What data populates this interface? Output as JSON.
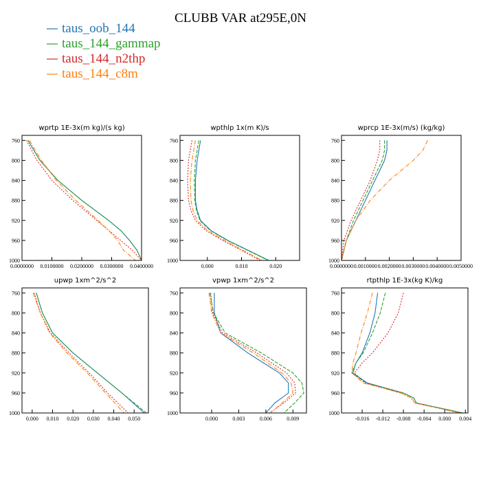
{
  "figure_title": "CLUBB VAR at295E,0N",
  "legend": [
    {
      "label": "taus_oob_144",
      "color": "#1f77b4"
    },
    {
      "label": "taus_144_gammap",
      "color": "#2ca02c"
    },
    {
      "label": "taus_144_n2thp",
      "color": "#d62728"
    },
    {
      "label": "taus_144_c8m",
      "color": "#ff7f0e"
    }
  ],
  "chart_data": [
    {
      "type": "line",
      "title": "wprtp 1E-3x(m kg)/(s kg)",
      "xlim": [
        0,
        0.04
      ],
      "ylim": [
        1000,
        750
      ],
      "xticks": [
        0,
        0.01,
        0.02,
        0.03,
        0.04
      ],
      "xtick_labels": [
        "0.0000000",
        "0.0100000",
        "0.0200000",
        "0.0300000",
        "0.0400000"
      ],
      "yticks": [
        760,
        800,
        840,
        880,
        920,
        960,
        1000
      ],
      "ytick_labels": [
        "760",
        "800",
        "840",
        "880",
        "920",
        "960",
        "1000"
      ],
      "y": [
        760,
        800,
        840,
        880,
        920,
        940,
        960,
        980,
        1000
      ],
      "series": [
        {
          "name": "taus_oob_144",
          "x": [
            0.002,
            0.006,
            0.012,
            0.02,
            0.029,
            0.033,
            0.036,
            0.0385,
            0.04
          ]
        },
        {
          "name": "taus_144_gammap",
          "x": [
            0.002,
            0.006,
            0.012,
            0.02,
            0.029,
            0.033,
            0.036,
            0.0385,
            0.04
          ]
        },
        {
          "name": "taus_144_n2thp",
          "x": [
            0.0015,
            0.005,
            0.01,
            0.017,
            0.025,
            0.029,
            0.033,
            0.037,
            0.04
          ]
        },
        {
          "name": "taus_144_c8m",
          "x": [
            0.0025,
            0.0065,
            0.0115,
            0.018,
            0.0255,
            0.029,
            0.032,
            0.034,
            0.038
          ]
        }
      ]
    },
    {
      "type": "line",
      "title": "wpthlp 1x(m K)/s",
      "xlim": [
        -0.008,
        0.027
      ],
      "ylim": [
        1000,
        750
      ],
      "xticks": [
        0,
        0.01,
        0.02
      ],
      "xtick_labels": [
        "0.000",
        "0.010",
        "0.020"
      ],
      "yticks": [
        760,
        800,
        840,
        880,
        920,
        960,
        1000
      ],
      "ytick_labels": [
        "760",
        "800",
        "840",
        "880",
        "920",
        "960",
        "1000"
      ],
      "y": [
        760,
        800,
        840,
        880,
        900,
        920,
        940,
        960,
        980,
        1000
      ],
      "series": [
        {
          "name": "taus_oob_144",
          "x": [
            -0.002,
            -0.003,
            -0.0035,
            -0.0035,
            -0.003,
            -0.002,
            0.001,
            0.006,
            0.012,
            0.018
          ]
        },
        {
          "name": "taus_144_gammap",
          "x": [
            -0.0025,
            -0.0035,
            -0.0038,
            -0.0037,
            -0.0032,
            -0.0022,
            0.0008,
            0.0058,
            0.0118,
            0.0178
          ]
        },
        {
          "name": "taus_144_n2thp",
          "x": [
            -0.0045,
            -0.0055,
            -0.0058,
            -0.0055,
            -0.0048,
            -0.0035,
            -0.0005,
            0.0045,
            0.01,
            0.0155
          ]
        },
        {
          "name": "taus_144_c8m",
          "x": [
            -0.0035,
            -0.0045,
            -0.005,
            -0.0048,
            -0.0042,
            -0.003,
            0.0,
            0.005,
            0.0105,
            0.016
          ]
        }
      ]
    },
    {
      "type": "line",
      "title": "wprcp 1E-3x(m/s) (kg/kg)",
      "xlim": [
        0,
        0.005
      ],
      "ylim": [
        1000,
        750
      ],
      "xticks": [
        0,
        0.001,
        0.002,
        0.003,
        0.004,
        0.005
      ],
      "xtick_labels": [
        "0.0000000",
        "0.0010000",
        "0.0020000",
        "0.0030000",
        "0.0040000",
        "0.0050000"
      ],
      "yticks": [
        760,
        800,
        840,
        880,
        920,
        960,
        1000
      ],
      "ytick_labels": [
        "760",
        "800",
        "840",
        "880",
        "920",
        "960",
        "1000"
      ],
      "y": [
        760,
        780,
        800,
        840,
        880,
        920,
        960,
        1000
      ],
      "series": [
        {
          "name": "taus_oob_144",
          "x": [
            0.0019,
            0.0019,
            0.0018,
            0.0014,
            0.001,
            0.0006,
            0.0002,
            0.0
          ]
        },
        {
          "name": "taus_144_gammap",
          "x": [
            0.0018,
            0.0018,
            0.0017,
            0.0013,
            0.0009,
            0.0005,
            0.0002,
            0.0
          ]
        },
        {
          "name": "taus_144_n2thp",
          "x": [
            0.0016,
            0.0016,
            0.0015,
            0.0012,
            0.0008,
            0.0004,
            0.0001,
            0.0
          ]
        },
        {
          "name": "taus_144_c8m",
          "x": [
            0.0036,
            0.0034,
            0.003,
            0.002,
            0.0012,
            0.0006,
            0.0002,
            0.0
          ]
        }
      ]
    },
    {
      "type": "line",
      "title": "upwp 1xm^2/s^2",
      "xlim": [
        -0.005,
        0.057
      ],
      "ylim": [
        1000,
        750
      ],
      "xticks": [
        0,
        0.01,
        0.02,
        0.03,
        0.04,
        0.05
      ],
      "xtick_labels": [
        "0.000",
        "0.010",
        "0.020",
        "0.030",
        "0.040",
        "0.050"
      ],
      "yticks": [
        760,
        800,
        840,
        880,
        920,
        960,
        1000
      ],
      "ytick_labels": [
        "760",
        "800",
        "840",
        "880",
        "920",
        "960",
        "1000"
      ],
      "y": [
        760,
        800,
        840,
        880,
        920,
        960,
        1000
      ],
      "series": [
        {
          "name": "taus_oob_144",
          "x": [
            0.002,
            0.005,
            0.01,
            0.02,
            0.032,
            0.044,
            0.055
          ]
        },
        {
          "name": "taus_144_gammap",
          "x": [
            0.002,
            0.005,
            0.01,
            0.02,
            0.032,
            0.044,
            0.056
          ]
        },
        {
          "name": "taus_144_n2thp",
          "x": [
            0.001,
            0.004,
            0.009,
            0.018,
            0.028,
            0.037,
            0.047
          ]
        },
        {
          "name": "taus_144_c8m",
          "x": [
            0.0005,
            0.004,
            0.0085,
            0.017,
            0.027,
            0.036,
            0.045
          ]
        }
      ]
    },
    {
      "type": "line",
      "title": "vpwp 1xm^2/s^2",
      "xlim": [
        -0.0035,
        0.0105
      ],
      "ylim": [
        1000,
        750
      ],
      "xticks": [
        0,
        0.003,
        0.006,
        0.009
      ],
      "xtick_labels": [
        "0.000",
        "0.003",
        "0.006",
        "0.009"
      ],
      "yticks": [
        760,
        800,
        840,
        880,
        920,
        960,
        1000
      ],
      "ytick_labels": [
        "760",
        "800",
        "840",
        "880",
        "920",
        "960",
        "1000"
      ],
      "y": [
        760,
        800,
        840,
        880,
        920,
        940,
        960,
        980,
        1000
      ],
      "series": [
        {
          "name": "taus_oob_144",
          "x": [
            0.0003,
            0.0003,
            0.001,
            0.004,
            0.0075,
            0.0085,
            0.0085,
            0.007,
            0.006
          ]
        },
        {
          "name": "taus_144_gammap",
          "x": [
            -0.0002,
            0.0002,
            0.0015,
            0.0055,
            0.009,
            0.01,
            0.0102,
            0.0092,
            0.008
          ]
        },
        {
          "name": "taus_144_n2thp",
          "x": [
            -0.0001,
            0.0001,
            0.0012,
            0.005,
            0.0083,
            0.0092,
            0.0093,
            0.008,
            0.0064
          ]
        },
        {
          "name": "taus_144_c8m",
          "x": [
            -0.0003,
            0.0,
            0.001,
            0.0046,
            0.0078,
            0.0088,
            0.009,
            0.0078,
            0.0065
          ]
        }
      ]
    },
    {
      "type": "line",
      "title": "rtpthlp 1E-3x(kg K)/kg",
      "xlim": [
        -0.02,
        0.0045
      ],
      "ylim": [
        1000,
        750
      ],
      "xticks": [
        -0.016,
        -0.012,
        -0.008,
        -0.004,
        0,
        0.004
      ],
      "xtick_labels": [
        "-0.016",
        "-0.012",
        "-0.008",
        "-0.004",
        "0.000",
        "0.004"
      ],
      "yticks": [
        760,
        800,
        840,
        880,
        920,
        960,
        1000
      ],
      "ytick_labels": [
        "760",
        "800",
        "840",
        "880",
        "920",
        "960",
        "1000"
      ],
      "y": [
        760,
        800,
        840,
        880,
        900,
        920,
        940,
        960,
        970,
        980,
        1000
      ],
      "series": [
        {
          "name": "taus_oob_144",
          "x": [
            -0.013,
            -0.0135,
            -0.0145,
            -0.016,
            -0.0172,
            -0.0178,
            -0.015,
            -0.008,
            -0.006,
            -0.0055,
            0.0035
          ]
        },
        {
          "name": "taus_144_gammap",
          "x": [
            -0.0115,
            -0.0125,
            -0.014,
            -0.0158,
            -0.0172,
            -0.018,
            -0.0152,
            -0.008,
            -0.006,
            -0.0055,
            0.0035
          ]
        },
        {
          "name": "taus_144_n2thp",
          "x": [
            -0.008,
            -0.009,
            -0.011,
            -0.014,
            -0.016,
            -0.0175,
            -0.0155,
            -0.0085,
            -0.0065,
            -0.0058,
            0.003
          ]
        },
        {
          "name": "taus_144_c8m",
          "x": [
            -0.014,
            -0.015,
            -0.0162,
            -0.0172,
            -0.0178,
            -0.018,
            -0.0158,
            -0.0085,
            -0.0065,
            -0.0058,
            0.003
          ]
        }
      ]
    }
  ]
}
